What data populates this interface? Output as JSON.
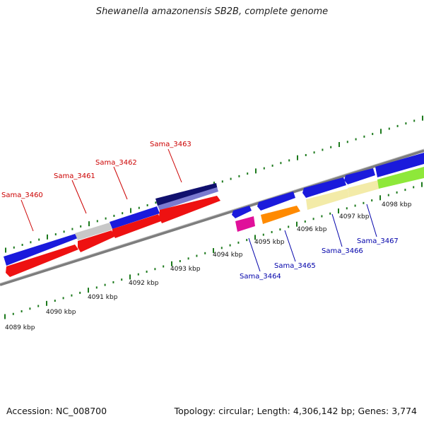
{
  "title": "Shewanella amazonensis SB2B, complete genome",
  "footer": {
    "accession": "Accession: NC_008700",
    "summary": "Topology: circular; Length: 4,306,142 bp; Genes: 3,774"
  },
  "colors": {
    "backbone": "#8a8a8a",
    "tick": "#1d7a1d",
    "label_top": "#cc0000",
    "label_bottom": "#0000aa"
  },
  "scale_labels": [
    "4089 kbp",
    "4090 kbp",
    "4091 kbp",
    "4092 kbp",
    "4093 kbp",
    "4094 kbp",
    "4095 kbp",
    "4096 kbp",
    "4097 kbp",
    "4098 kbp"
  ],
  "gene_labels_top": [
    "Sama_3460",
    "Sama_3461",
    "Sama_3462",
    "Sama_3463"
  ],
  "gene_labels_bottom": [
    "Sama_3464",
    "Sama_3465",
    "Sama_3466",
    "Sama_3467"
  ]
}
